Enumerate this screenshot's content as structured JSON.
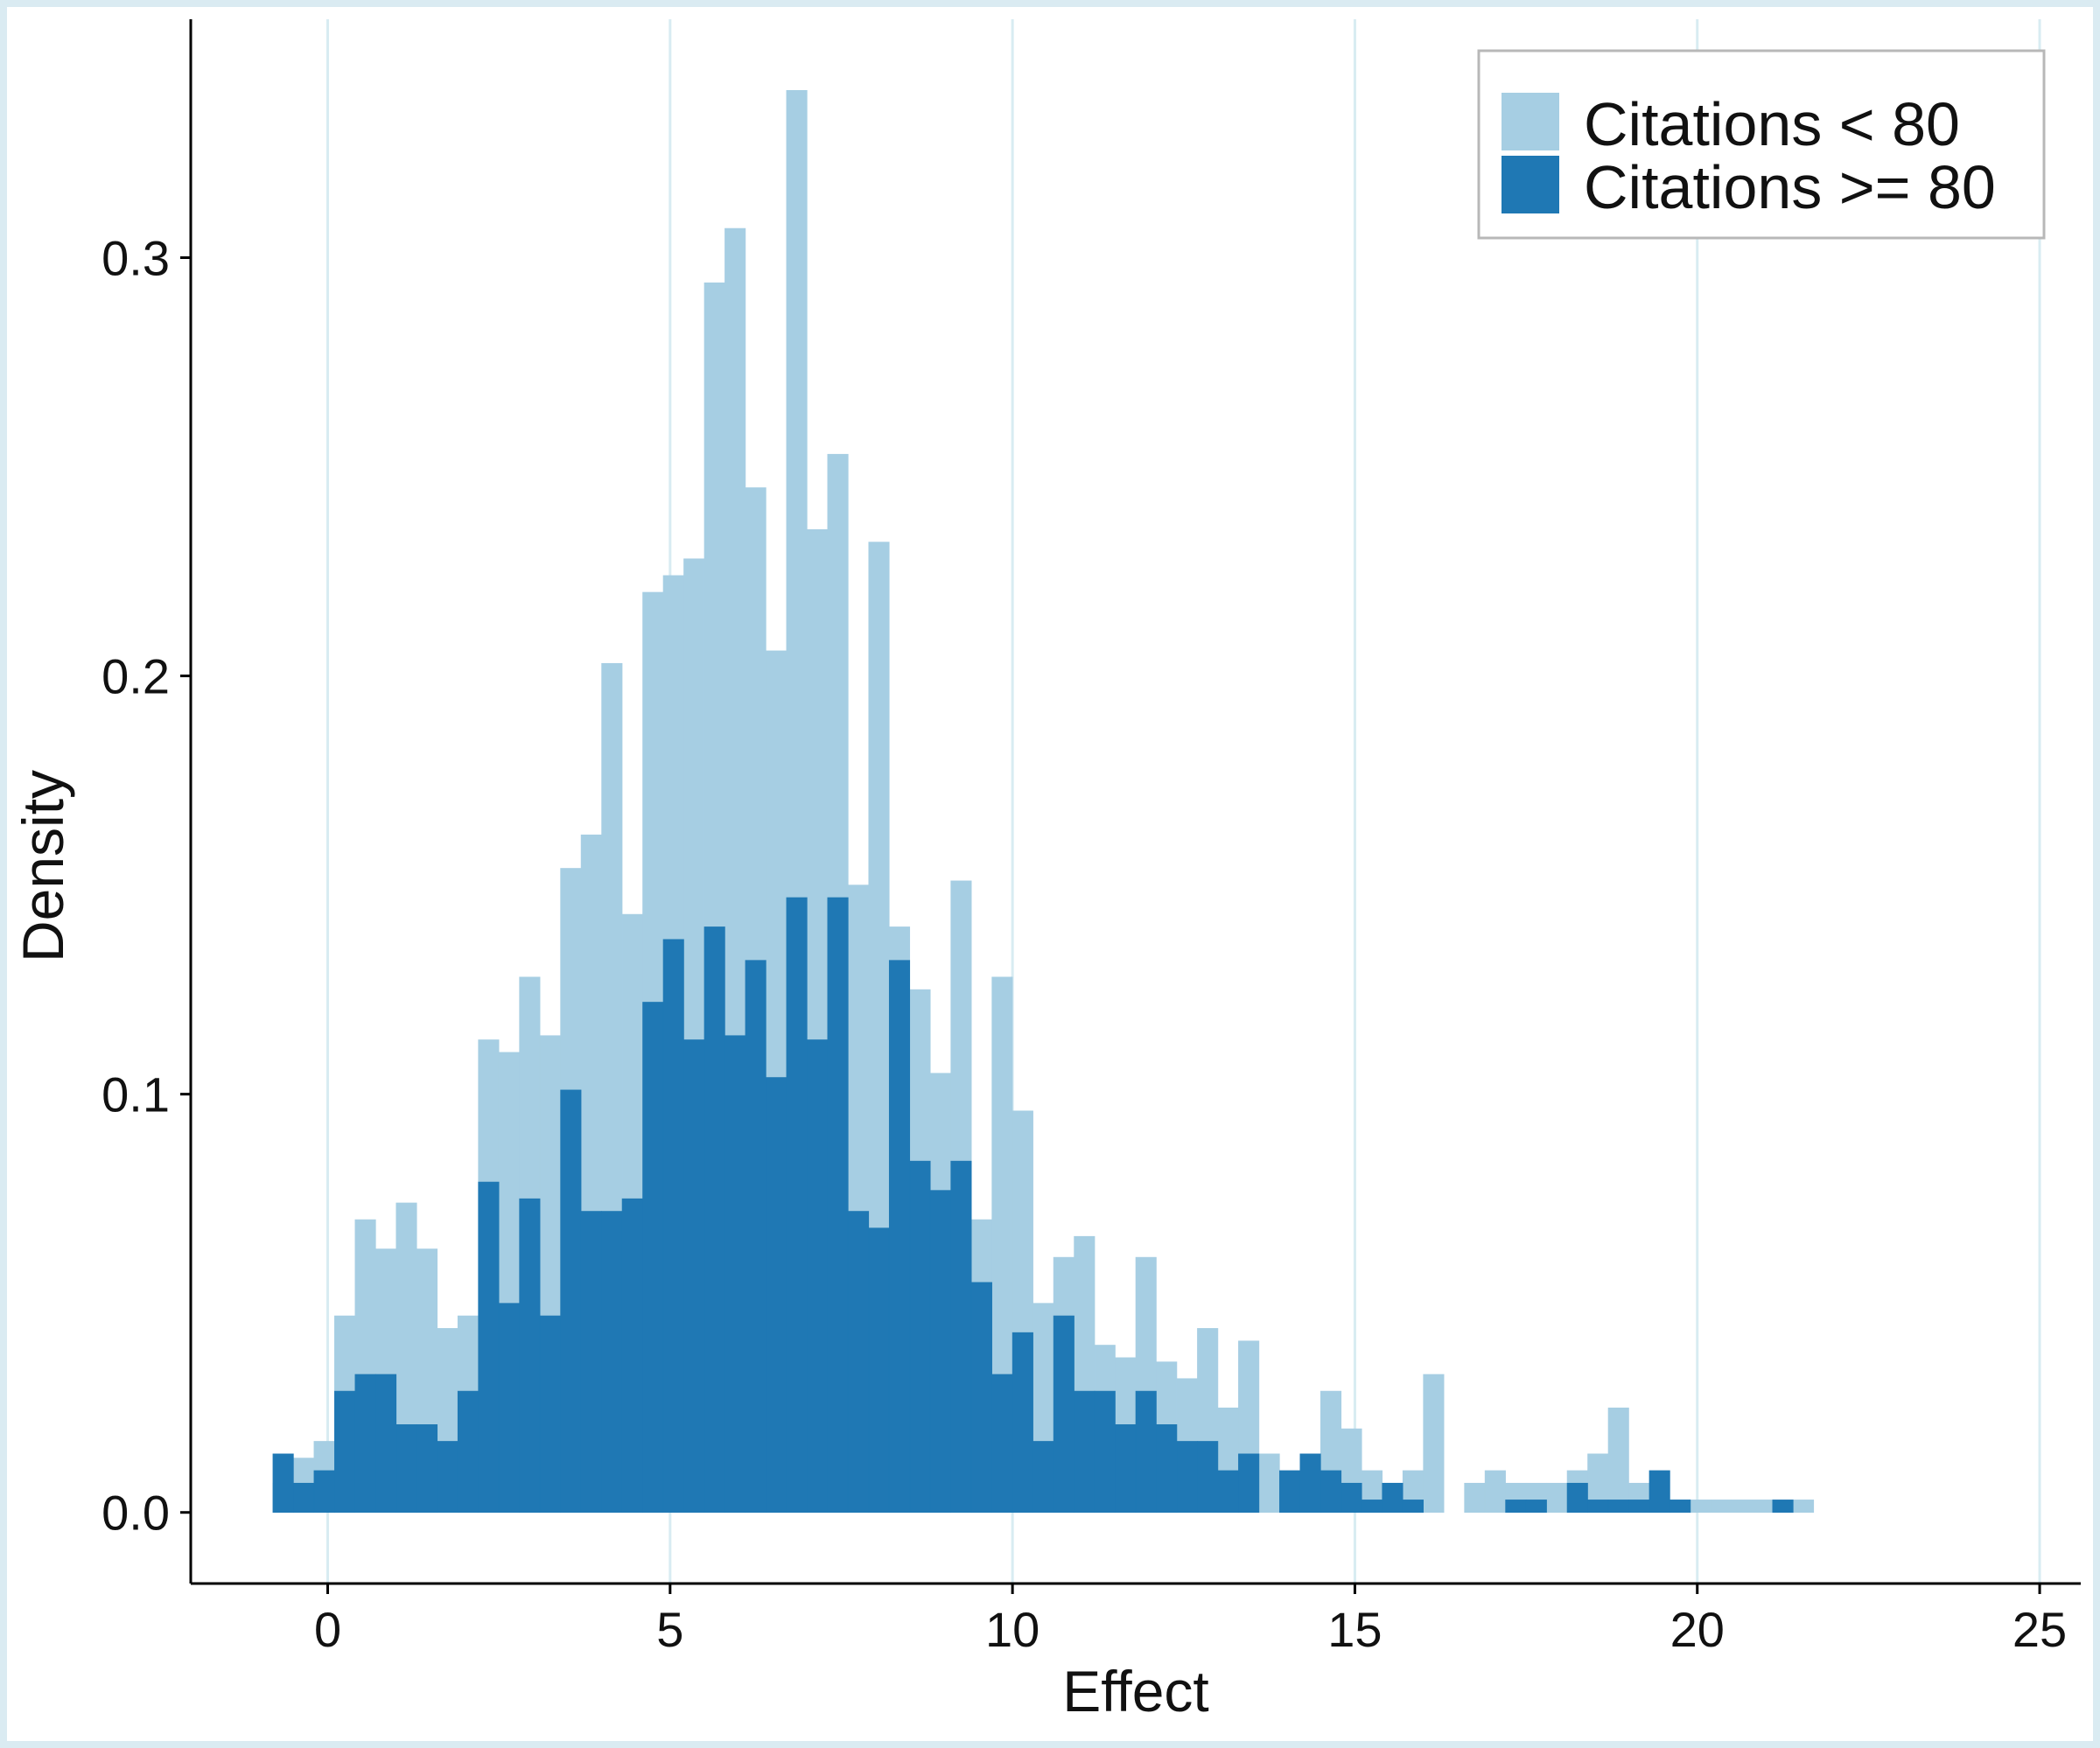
{
  "chart_data": {
    "type": "bar",
    "subtype": "overlaid-histogram",
    "title": "",
    "xlabel": "Effect",
    "ylabel": "Density",
    "xlim": [
      -2.0,
      25.6
    ],
    "ylim": [
      -0.017,
      0.357
    ],
    "xticks": [
      0,
      5,
      10,
      15,
      20,
      25
    ],
    "yticks": [
      0.0,
      0.1,
      0.2,
      0.3
    ],
    "ytick_labels": [
      "0.0",
      "0.1",
      "0.2",
      "0.3"
    ],
    "grid": "vertical lines at x ticks",
    "legend_position": "top-right",
    "bin_width": 0.3,
    "bin_start": -0.8,
    "series": [
      {
        "name": "Citations < 80",
        "color": "#a6cee3",
        "values": [
          0.007,
          0.013,
          0.017,
          0.047,
          0.07,
          0.063,
          0.074,
          0.063,
          0.044,
          0.047,
          0.113,
          0.11,
          0.128,
          0.114,
          0.154,
          0.162,
          0.203,
          0.143,
          0.22,
          0.224,
          0.228,
          0.294,
          0.307,
          0.245,
          0.206,
          0.34,
          0.235,
          0.253,
          0.15,
          0.232,
          0.14,
          0.125,
          0.105,
          0.151,
          0.07,
          0.128,
          0.096,
          0.05,
          0.061,
          0.066,
          0.04,
          0.037,
          0.061,
          0.036,
          0.032,
          0.044,
          0.025,
          0.041,
          0.014,
          0.007,
          0.013,
          0.029,
          0.02,
          0.01,
          0.007,
          0.01,
          0.033,
          0.0,
          0.007,
          0.01,
          0.007,
          0.007,
          0.007,
          0.01,
          0.014,
          0.025,
          0.007,
          0.003,
          0.003,
          0.003,
          0.003,
          0.003,
          0.003,
          0.0,
          0.003
        ]
      },
      {
        "name": "Citations >= 80",
        "color": "#1f78b4",
        "values": [
          0.014,
          0.007,
          0.01,
          0.029,
          0.033,
          0.033,
          0.021,
          0.021,
          0.017,
          0.029,
          0.079,
          0.05,
          0.075,
          0.047,
          0.101,
          0.072,
          0.072,
          0.075,
          0.122,
          0.137,
          0.113,
          0.14,
          0.114,
          0.132,
          0.104,
          0.147,
          0.113,
          0.147,
          0.072,
          0.068,
          0.132,
          0.084,
          0.077,
          0.084,
          0.055,
          0.033,
          0.043,
          0.017,
          0.047,
          0.029,
          0.029,
          0.021,
          0.029,
          0.021,
          0.017,
          0.017,
          0.01,
          0.014,
          0.0,
          0.01,
          0.014,
          0.01,
          0.007,
          0.003,
          0.007,
          0.003,
          0.0,
          0.0,
          0.0,
          0.0,
          0.003,
          0.003,
          0.0,
          0.007,
          0.003,
          0.003,
          0.003,
          0.01,
          0.003,
          0.0,
          0.0,
          0.0,
          0.0,
          0.003,
          0.0
        ]
      }
    ]
  }
}
